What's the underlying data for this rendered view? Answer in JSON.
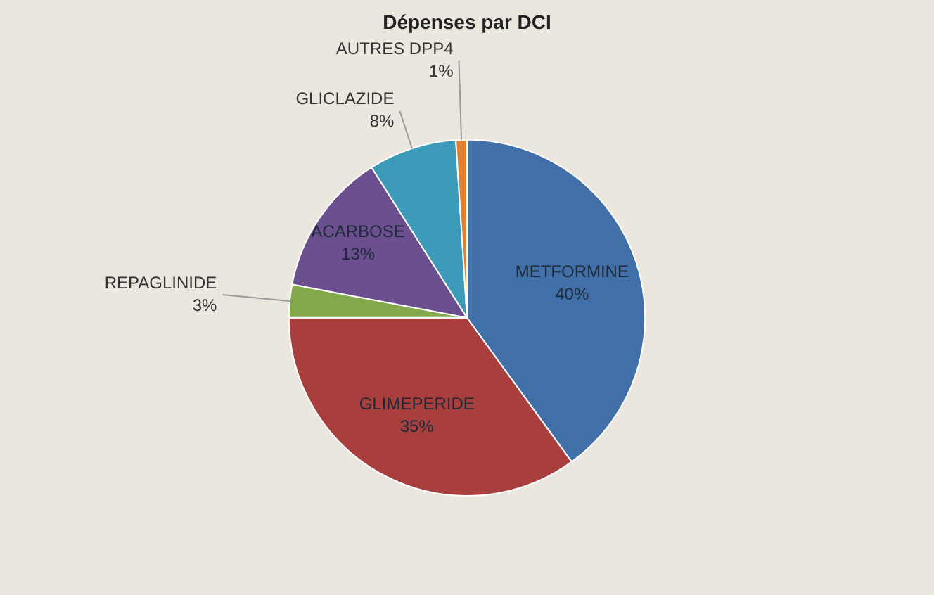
{
  "chart_data": {
    "type": "pie",
    "title": "Dépenses par DCI",
    "categories": [
      "METFORMINE",
      "GLIMEPERIDE",
      "REPAGLINIDE",
      "ACARBOSE",
      "GLICLAZIDE",
      "AUTRES DPP4"
    ],
    "values": [
      40,
      35,
      3,
      13,
      8,
      1
    ],
    "value_labels": [
      "40%",
      "35%",
      "3%",
      "13%",
      "8%",
      "1%"
    ],
    "colors": [
      "#4170a8",
      "#a83f3c",
      "#82aa4c",
      "#6b4f8f",
      "#3c9bb8",
      "#e2802f"
    ],
    "legend": false
  }
}
